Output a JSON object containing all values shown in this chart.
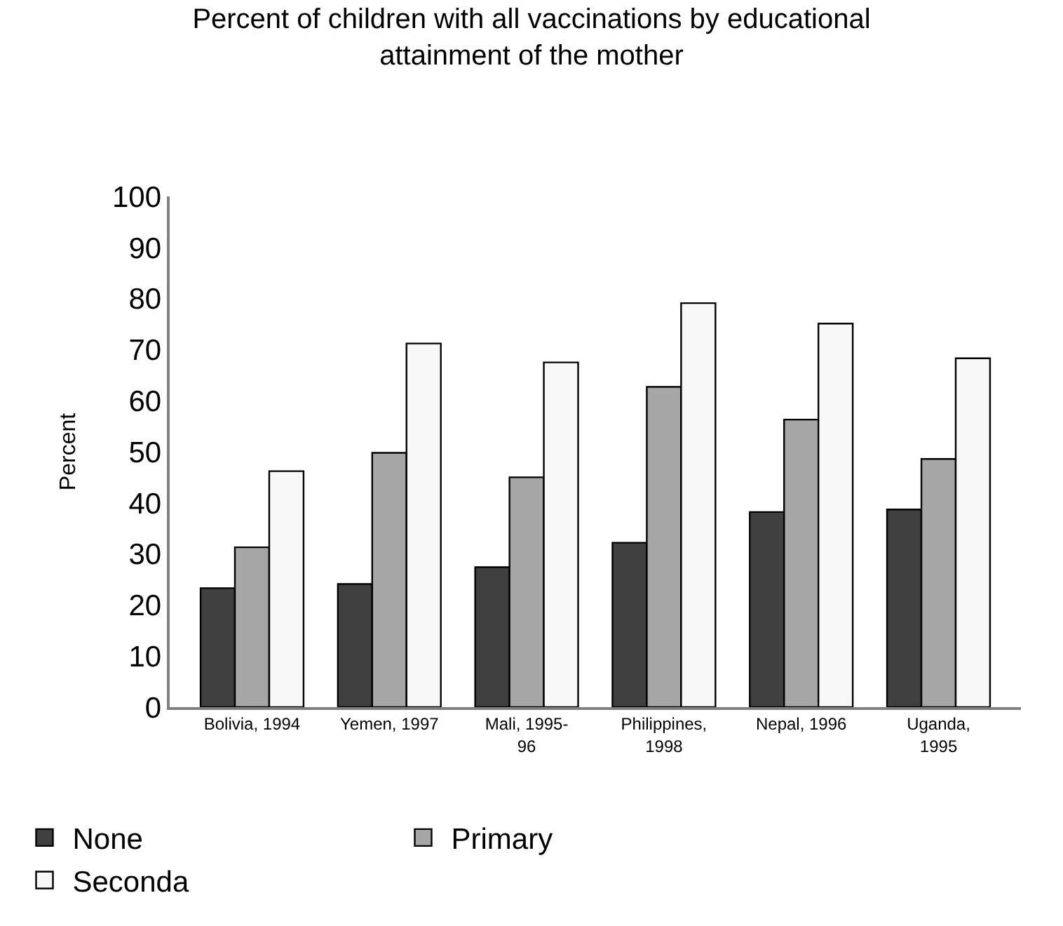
{
  "chart_data": {
    "type": "bar",
    "title": "Percent of children with all vaccinations by educational\nattainment of the mother",
    "ylabel": "Percent",
    "categories": [
      "Bolivia, 1994",
      "Yemen, 1997",
      "Mali, 1995-\n96",
      "Philippines,\n1998",
      "Nepal, 1996",
      "Uganda,\n1995"
    ],
    "series": [
      {
        "name": "None",
        "color": "#404040",
        "values": [
          23.3,
          24.1,
          27.4,
          32.2,
          38.2,
          38.7
        ]
      },
      {
        "name": "Primary",
        "color": "#a6a6a6",
        "values": [
          31.3,
          49.8,
          45.0,
          62.7,
          56.3,
          48.6
        ]
      },
      {
        "name": "Seconda",
        "color": "#f8f8f8",
        "values": [
          46.2,
          71.2,
          67.5,
          79.1,
          75.1,
          68.3
        ]
      }
    ],
    "ylim": [
      0,
      100
    ],
    "yticks": [
      0,
      10,
      20,
      30,
      40,
      50,
      60,
      70,
      80,
      90,
      100
    ],
    "grid": false,
    "legend": "bottom"
  }
}
